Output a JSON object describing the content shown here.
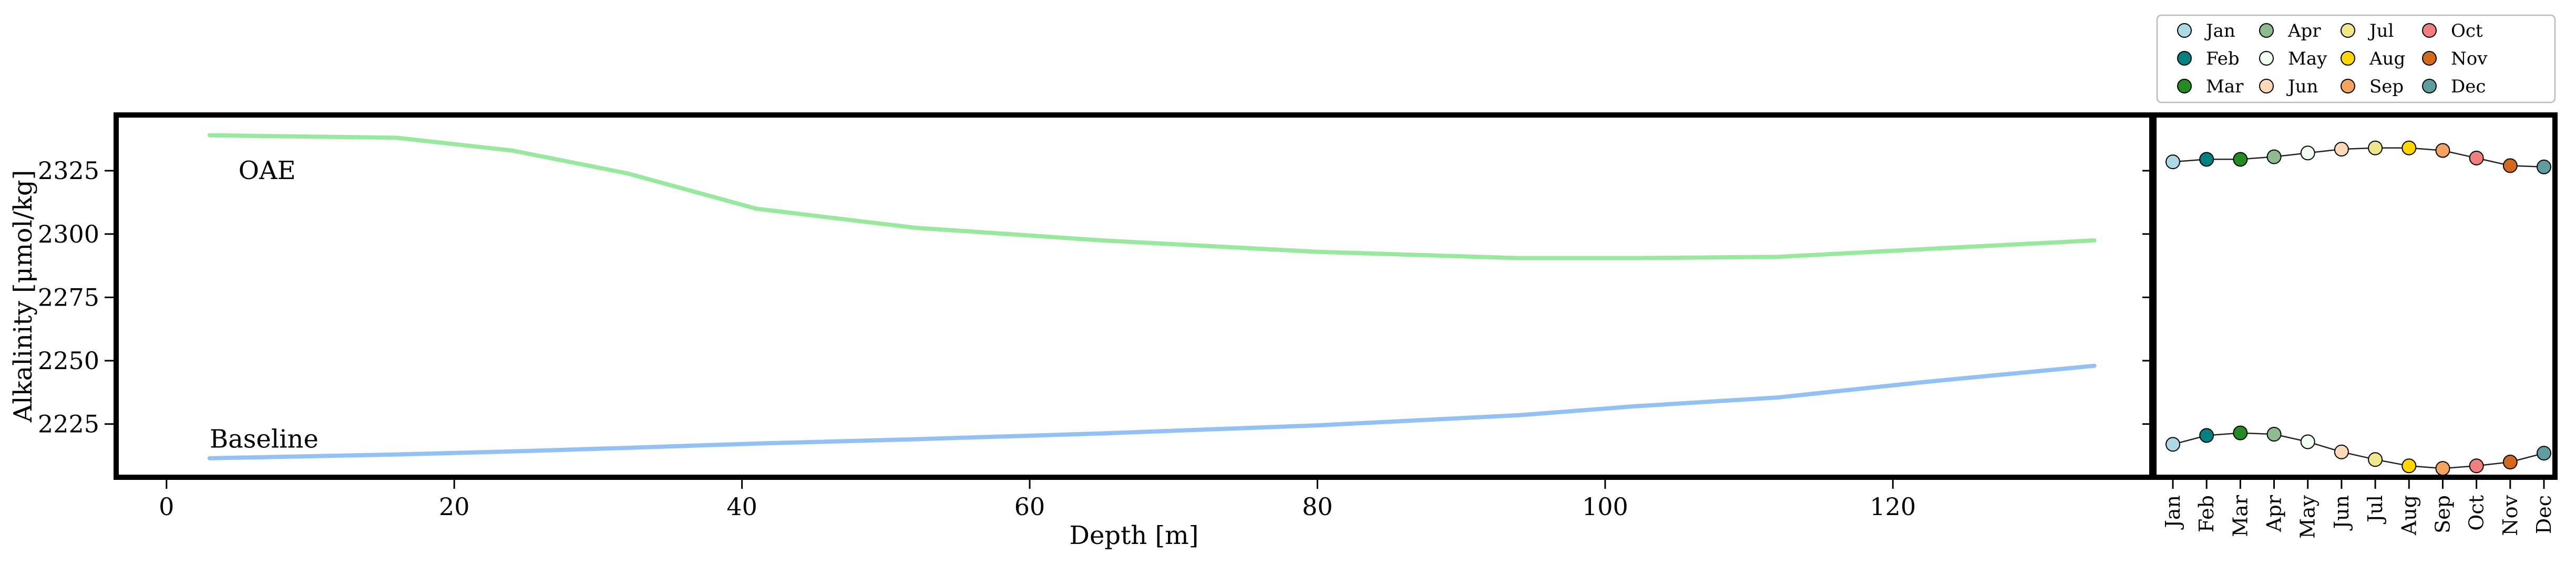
{
  "chart_data": [
    {
      "type": "line",
      "xlabel": "Depth [m]",
      "ylabel": "Alkalinity [μmol/kg]",
      "xlim": [
        -3.5,
        138
      ],
      "ylim": [
        2204,
        2347
      ],
      "xticks": [
        0,
        20,
        40,
        60,
        80,
        100,
        120
      ],
      "yticks": [
        2225,
        2250,
        2275,
        2300,
        2325
      ],
      "grid": false,
      "series": [
        {
          "name": "OAE",
          "color": "#98e8a0",
          "x": [
            3,
            16,
            24,
            32,
            41,
            52,
            65,
            80,
            94,
            102,
            112,
            122,
            134
          ],
          "y": [
            2339,
            2338,
            2333,
            2324,
            2310,
            2302.5,
            2297.5,
            2293,
            2290.5,
            2290.5,
            2291,
            2294,
            2297.5
          ]
        },
        {
          "name": "Baseline",
          "color": "#92c1f5",
          "x": [
            3,
            16,
            24,
            32,
            41,
            52,
            65,
            80,
            94,
            102,
            112,
            122,
            134
          ],
          "y": [
            2211.5,
            2213,
            2214.2,
            2215.6,
            2217.3,
            2219,
            2221.3,
            2224.5,
            2228.5,
            2232,
            2235.5,
            2241.5,
            2248
          ]
        }
      ],
      "annotations": [
        {
          "text": "OAE",
          "x": 5,
          "y": 2325
        },
        {
          "text": "Baseline",
          "x": 3,
          "y": 2219
        }
      ]
    },
    {
      "type": "line",
      "categories": [
        "Jan",
        "Feb",
        "Mar",
        "Apr",
        "May",
        "Jun",
        "Jul",
        "Aug",
        "Sep",
        "Oct",
        "Nov",
        "Dec"
      ],
      "ylim": [
        2204,
        2347
      ],
      "grid": false,
      "series": [
        {
          "name": "OAE",
          "values": [
            2328.5,
            2329.5,
            2329.5,
            2330.5,
            2332,
            2333.5,
            2334,
            2334,
            2333,
            2330,
            2327,
            2326.5
          ]
        },
        {
          "name": "Baseline",
          "values": [
            2217,
            2220.5,
            2221.5,
            2221,
            2218,
            2214,
            2211,
            2208.5,
            2207.5,
            2208.5,
            2210,
            2213.5
          ]
        }
      ],
      "month_colors": [
        "#add8e6",
        "#008080",
        "#228b22",
        "#8fbc8f",
        "#f0fff0",
        "#ffdab9",
        "#f0e68c",
        "#ffd700",
        "#f4a460",
        "#f08080",
        "#d2691e",
        "#5f9ea0"
      ],
      "legend": {
        "placement": "top-right",
        "entries": [
          "Jan",
          "Feb",
          "Mar",
          "Apr",
          "May",
          "Jun",
          "Jul",
          "Aug",
          "Sep",
          "Oct",
          "Nov",
          "Dec"
        ]
      }
    }
  ]
}
